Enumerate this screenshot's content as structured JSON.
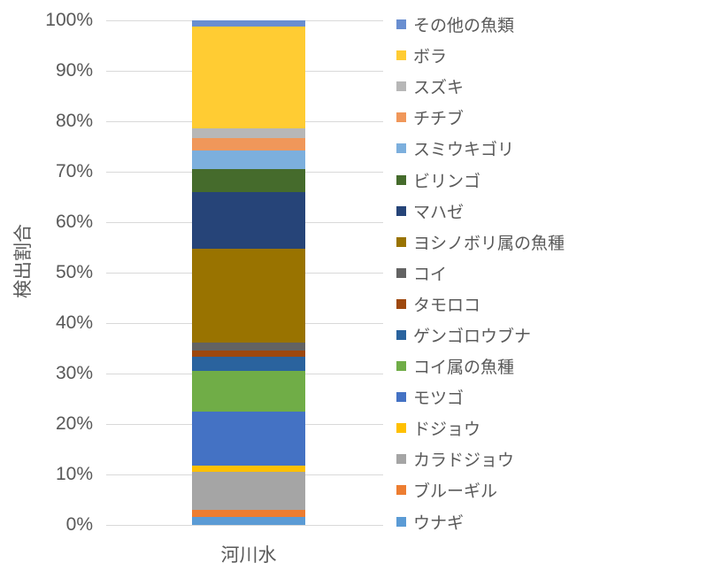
{
  "chart_data": {
    "type": "bar",
    "subtype": "stacked-100-percent-column",
    "title": "",
    "ylabel": "検出割合",
    "xlabel": "",
    "categories": [
      "河川水"
    ],
    "ylim": [
      0,
      100
    ],
    "y_tick_labels": [
      "0%",
      "10%",
      "20%",
      "30%",
      "40%",
      "50%",
      "60%",
      "70%",
      "80%",
      "90%",
      "100%"
    ],
    "grid": true,
    "legend_position": "right",
    "series_order": "listed top-of-stack first; legend shown in the same order",
    "series": [
      {
        "name": "その他の魚類",
        "value": 1.3,
        "color": "#698ED0"
      },
      {
        "name": "ボラ",
        "value": 20.1,
        "color": "#FFCC33"
      },
      {
        "name": "スズキ",
        "value": 1.9,
        "color": "#B7B7B7"
      },
      {
        "name": "チチブ",
        "value": 2.5,
        "color": "#F0975A"
      },
      {
        "name": "スミウキゴリ",
        "value": 3.7,
        "color": "#7CAFDD"
      },
      {
        "name": "ビリンゴ",
        "value": 4.5,
        "color": "#456B2C"
      },
      {
        "name": "マハゼ",
        "value": 11.2,
        "color": "#264478"
      },
      {
        "name": "ヨシノボリ属の魚種",
        "value": 18.6,
        "color": "#997300"
      },
      {
        "name": "コイ",
        "value": 1.6,
        "color": "#636363"
      },
      {
        "name": "タモロコ",
        "value": 1.2,
        "color": "#9E480E"
      },
      {
        "name": "ゲンゴロウブナ",
        "value": 2.8,
        "color": "#2A639E"
      },
      {
        "name": "コイ属の魚種",
        "value": 8.1,
        "color": "#70AD47"
      },
      {
        "name": "モツゴ",
        "value": 10.7,
        "color": "#4472C4"
      },
      {
        "name": "ドジョウ",
        "value": 1.3,
        "color": "#FFC000"
      },
      {
        "name": "カラドジョウ",
        "value": 7.5,
        "color": "#A5A5A5"
      },
      {
        "name": "ブルーギル",
        "value": 1.4,
        "color": "#ED7D31"
      },
      {
        "name": "ウナギ",
        "value": 1.6,
        "color": "#5B9BD5"
      }
    ],
    "text_color": "#595959",
    "gridline_color": "#D9D9D9"
  }
}
